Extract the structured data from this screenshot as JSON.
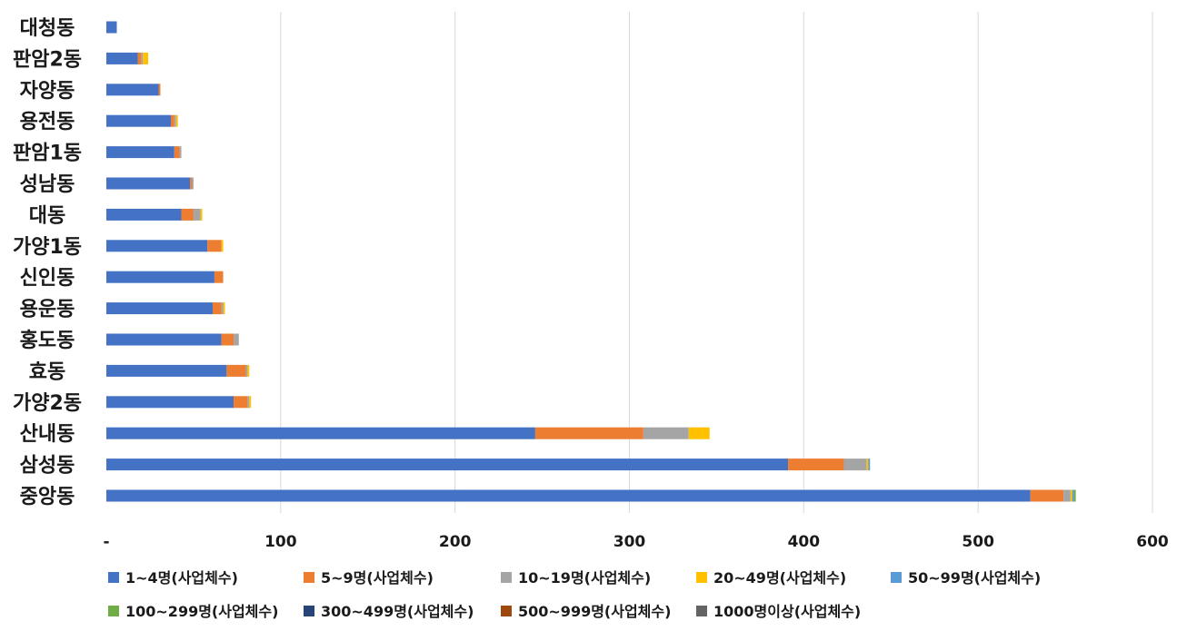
{
  "chart_data": {
    "type": "bar",
    "orientation": "horizontal",
    "stacked": true,
    "categories": [
      "대청동",
      "판암2동",
      "자양동",
      "용전동",
      "판암1동",
      "성남동",
      "대동",
      "가양1동",
      "신인동",
      "용운동",
      "홍도동",
      "효동",
      "가양2동",
      "산내동",
      "삼성동",
      "중앙동"
    ],
    "series": [
      {
        "name": "1~4명(사업체수)",
        "color": "#4472C4",
        "values": [
          6,
          18,
          30,
          37,
          39,
          48,
          43,
          58,
          62,
          61,
          66,
          69,
          73,
          246,
          391,
          530
        ]
      },
      {
        "name": "5~9명(사업체수)",
        "color": "#ED7D31",
        "values": [
          0,
          2,
          1,
          2,
          3,
          1,
          7,
          8,
          5,
          5,
          7,
          11,
          8,
          62,
          32,
          19
        ]
      },
      {
        "name": "10~19명(사업체수)",
        "color": "#A5A5A5",
        "values": [
          0,
          1,
          0,
          1,
          1,
          1,
          4,
          0,
          0,
          1,
          3,
          1,
          1,
          26,
          13,
          4
        ]
      },
      {
        "name": "20~49명(사업체수)",
        "color": "#FFC000",
        "values": [
          0,
          3,
          0,
          1,
          0,
          0,
          1,
          1,
          0,
          1,
          0,
          1,
          1,
          12,
          1,
          1
        ]
      },
      {
        "name": "50~99명(사업체수)",
        "color": "#5B9BD5",
        "values": [
          0,
          0,
          0,
          0,
          0,
          0,
          0,
          0,
          0,
          0,
          0,
          0,
          0,
          0,
          1,
          1
        ]
      },
      {
        "name": "100~299명(사업체수)",
        "color": "#70AD47",
        "values": [
          0,
          0,
          0,
          0,
          0,
          0,
          0,
          0,
          0,
          0,
          0,
          0,
          0,
          0,
          0,
          1
        ]
      },
      {
        "name": "300~499명(사업체수)",
        "color": "#264478",
        "values": [
          0,
          0,
          0,
          0,
          0,
          0,
          0,
          0,
          0,
          0,
          0,
          0,
          0,
          0,
          0,
          0
        ]
      },
      {
        "name": "500~999명(사업체수)",
        "color": "#9E480E",
        "values": [
          0,
          0,
          0,
          0,
          0,
          0,
          0,
          0,
          0,
          0,
          0,
          0,
          0,
          0,
          0,
          0
        ]
      },
      {
        "name": "1000명이상(사업체수)",
        "color": "#636363",
        "values": [
          0,
          0,
          0,
          0,
          0,
          0,
          0,
          0,
          0,
          0,
          0,
          0,
          0,
          0,
          0,
          0
        ]
      }
    ],
    "xlim": [
      0,
      600
    ],
    "x_ticks": [
      0,
      100,
      200,
      300,
      400,
      500,
      600
    ],
    "x_tick_labels": [
      "-",
      "100",
      "200",
      "300",
      "400",
      "500",
      "600"
    ],
    "title": "",
    "xlabel": "",
    "ylabel": "",
    "grid": "vertical",
    "legend_position": "bottom"
  }
}
